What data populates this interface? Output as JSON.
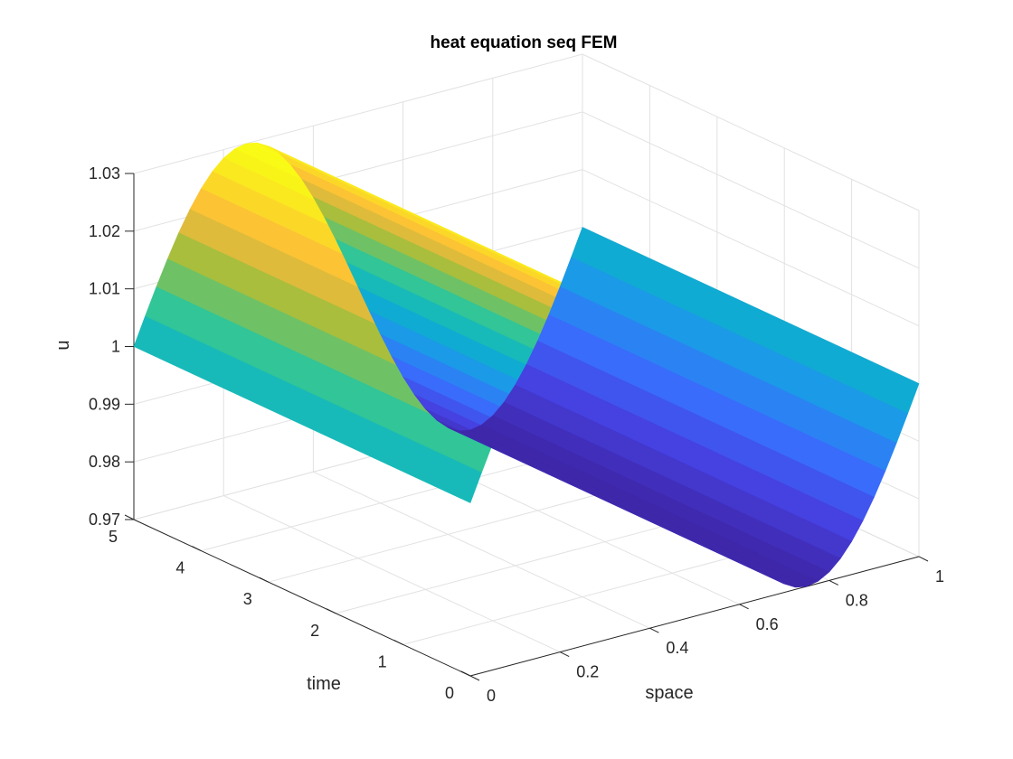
{
  "chart_data": {
    "type": "surface",
    "title": "heat equation seq FEM",
    "xlabel": "space",
    "ylabel": "time",
    "zlabel": "u",
    "xlim": [
      0,
      1
    ],
    "ylim": [
      0,
      5
    ],
    "zlim": [
      0.97,
      1.03
    ],
    "xticks": [
      0,
      0.2,
      0.4,
      0.6,
      0.8,
      1
    ],
    "xtick_labels": [
      "0",
      "0.2",
      "0.4",
      "0.6",
      "0.8",
      "1"
    ],
    "yticks": [
      0,
      1,
      2,
      3,
      4,
      5
    ],
    "ytick_labels": [
      "0",
      "1",
      "2",
      "3",
      "4",
      "5"
    ],
    "zticks": [
      0.97,
      0.98,
      0.99,
      1,
      1.01,
      1.02,
      1.03
    ],
    "ztick_labels": [
      "0.97",
      "0.98",
      "0.99",
      "1",
      "1.01",
      "1.02",
      "1.03"
    ],
    "grid": true,
    "colormap": "parula",
    "surface": {
      "function": "u = 1 + 0.03*sin(2*pi*x)",
      "x_range": [
        0,
        1
      ],
      "t_range": [
        0,
        5
      ],
      "samples": [
        {
          "x": 0,
          "u": 1.0
        },
        {
          "x": 0.125,
          "u": 1.0212
        },
        {
          "x": 0.25,
          "u": 1.03
        },
        {
          "x": 0.375,
          "u": 1.0212
        },
        {
          "x": 0.5,
          "u": 1.0
        },
        {
          "x": 0.625,
          "u": 0.9788
        },
        {
          "x": 0.75,
          "u": 0.97
        },
        {
          "x": 0.875,
          "u": 0.9788
        },
        {
          "x": 1,
          "u": 1.0
        }
      ]
    }
  }
}
